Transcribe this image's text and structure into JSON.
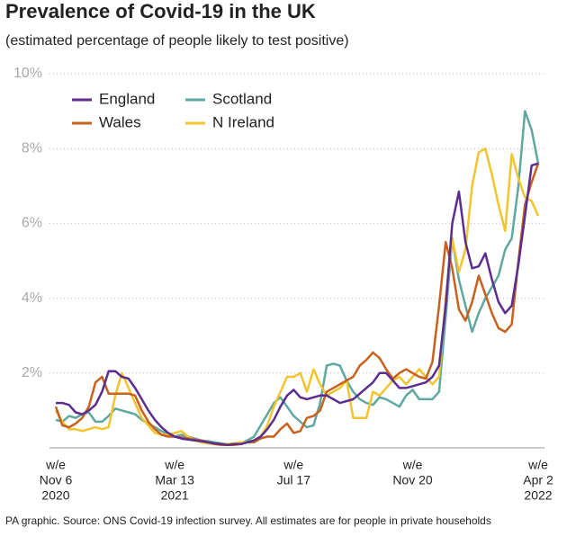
{
  "chart_data": {
    "type": "line",
    "title": "Prevalence of Covid-19 in the UK",
    "subtitle": "(estimated percentage of people likely to test positive)",
    "source": "PA graphic. Source: ONS Covid-19 infection survey. All estimates are for people in private households",
    "categories": [
      [
        "w/e",
        "Nov 6",
        "2020"
      ],
      null,
      null,
      null,
      null,
      null,
      null,
      null,
      null,
      null,
      null,
      null,
      null,
      null,
      null,
      null,
      null,
      null,
      [
        "w/e",
        "Mar 13",
        "2021"
      ],
      null,
      null,
      null,
      null,
      null,
      null,
      null,
      null,
      null,
      null,
      null,
      null,
      null,
      null,
      null,
      null,
      null,
      [
        "w/e",
        "Jul 17"
      ],
      null,
      null,
      null,
      null,
      null,
      null,
      null,
      null,
      null,
      null,
      null,
      null,
      null,
      null,
      null,
      null,
      null,
      [
        "w/e",
        "Nov 20"
      ],
      null,
      null,
      null,
      null,
      null,
      null,
      null,
      null,
      null,
      null,
      null,
      null,
      null,
      null,
      null,
      null,
      null,
      null,
      [
        "w/e",
        "Apr 2",
        "2022"
      ]
    ],
    "ylim": [
      0,
      10
    ],
    "yticks": [
      {
        "value": 2,
        "label": "2%"
      },
      {
        "value": 4,
        "label": "4%"
      },
      {
        "value": 6,
        "label": "6%"
      },
      {
        "value": 8,
        "label": "8%"
      },
      {
        "value": 10,
        "label": "10%"
      }
    ],
    "grid": true,
    "legend": "upper-left",
    "series": [
      {
        "name": "England",
        "color": "#5b2d8e",
        "values": [
          1.2,
          1.2,
          1.15,
          0.95,
          0.9,
          1.0,
          1.15,
          1.5,
          2.05,
          2.05,
          1.9,
          1.85,
          1.6,
          1.3,
          1.0,
          0.75,
          0.55,
          0.4,
          0.3,
          0.25,
          0.22,
          0.2,
          0.18,
          0.15,
          0.12,
          0.1,
          0.08,
          0.1,
          0.1,
          0.15,
          0.2,
          0.3,
          0.5,
          0.75,
          1.1,
          1.4,
          1.55,
          1.35,
          1.3,
          1.35,
          1.4,
          1.4,
          1.3,
          1.2,
          1.25,
          1.3,
          1.45,
          1.6,
          1.75,
          2.0,
          2.0,
          1.8,
          1.6,
          1.6,
          1.65,
          1.7,
          1.75,
          1.9,
          2.2,
          3.8,
          6.0,
          6.85,
          5.5,
          4.8,
          4.85,
          5.2,
          4.5,
          3.9,
          3.6,
          3.8,
          4.9,
          6.2,
          7.55,
          7.6
        ]
      },
      {
        "name": "Scotland",
        "color": "#5fa8a0",
        "values": [
          0.75,
          0.7,
          0.85,
          0.8,
          0.9,
          0.95,
          0.7,
          0.7,
          0.85,
          1.05,
          1.0,
          0.95,
          0.9,
          0.75,
          0.65,
          0.55,
          0.45,
          0.35,
          0.3,
          0.35,
          0.3,
          0.25,
          0.2,
          0.18,
          0.15,
          0.12,
          0.1,
          0.1,
          0.12,
          0.2,
          0.3,
          0.6,
          0.9,
          1.2,
          1.35,
          1.1,
          0.85,
          0.7,
          0.55,
          0.6,
          1.2,
          2.2,
          2.25,
          2.2,
          1.8,
          1.5,
          1.3,
          1.2,
          1.15,
          1.35,
          1.3,
          1.2,
          1.1,
          1.4,
          1.55,
          1.3,
          1.3,
          1.3,
          1.5,
          3.5,
          5.6,
          4.5,
          3.8,
          3.1,
          3.6,
          4.0,
          4.3,
          4.6,
          5.3,
          5.6,
          7.0,
          9.0,
          8.5,
          7.6
        ]
      },
      {
        "name": "Wales",
        "color": "#c8601e",
        "values": [
          1.1,
          0.6,
          0.55,
          0.65,
          0.8,
          1.1,
          1.75,
          1.9,
          1.45,
          1.45,
          1.45,
          1.45,
          1.4,
          1.0,
          0.7,
          0.5,
          0.35,
          0.3,
          0.3,
          0.28,
          0.25,
          0.22,
          0.2,
          0.15,
          0.1,
          0.08,
          0.08,
          0.08,
          0.1,
          0.15,
          0.15,
          0.25,
          0.3,
          0.3,
          0.5,
          0.65,
          0.4,
          0.45,
          0.8,
          0.85,
          1.0,
          1.5,
          1.6,
          1.7,
          1.8,
          1.9,
          2.2,
          2.35,
          2.55,
          2.4,
          2.1,
          1.85,
          2.0,
          2.1,
          2.0,
          1.9,
          1.85,
          2.3,
          3.8,
          5.5,
          4.8,
          3.7,
          3.4,
          3.9,
          4.6,
          4.1,
          3.6,
          3.2,
          3.1,
          3.3,
          5.0,
          6.5,
          7.1,
          7.6
        ]
      },
      {
        "name": "N Ireland",
        "color": "#f2c42e",
        "values": [
          1.0,
          0.7,
          0.5,
          0.5,
          0.45,
          0.5,
          0.55,
          0.5,
          0.55,
          1.4,
          2.0,
          1.6,
          1.2,
          0.8,
          0.6,
          0.4,
          0.35,
          0.35,
          0.4,
          0.45,
          0.3,
          0.2,
          0.15,
          0.12,
          0.1,
          0.1,
          0.1,
          0.12,
          0.15,
          0.15,
          0.2,
          0.3,
          0.6,
          1.1,
          1.5,
          1.9,
          1.9,
          2.0,
          1.5,
          2.1,
          1.7,
          1.4,
          1.5,
          1.6,
          1.8,
          0.8,
          0.8,
          0.8,
          1.5,
          1.4,
          1.6,
          1.8,
          1.9,
          1.7,
          1.9,
          2.1,
          1.9,
          1.7,
          1.9,
          4.0,
          5.6,
          4.7,
          5.3,
          7.0,
          7.9,
          8.0,
          7.3,
          6.5,
          5.8,
          7.85,
          7.2,
          6.7,
          6.6,
          6.2
        ]
      }
    ]
  }
}
